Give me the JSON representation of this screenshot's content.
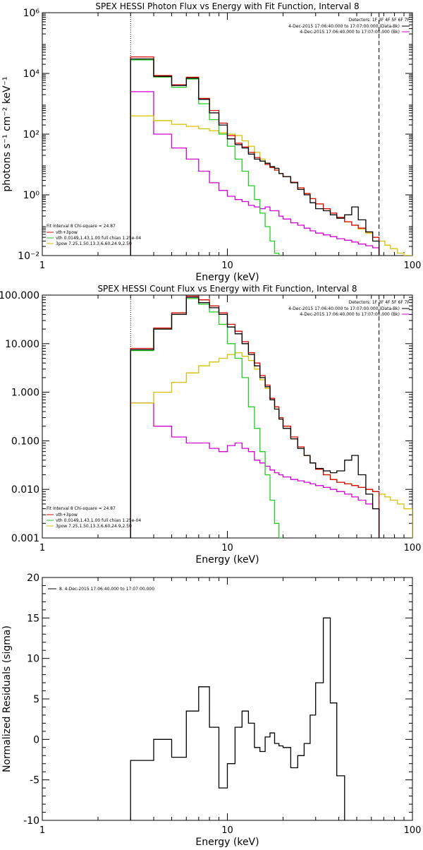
{
  "colors": {
    "total": "#000000",
    "vth_plus_3pow": "#d40000",
    "vth": "#22cc22",
    "pow": "#d6c000",
    "background": "#d000d0"
  },
  "chart_data": [
    {
      "type": "line",
      "title": "SPEX HESSI Photon Flux vs Energy with Fit Function, Interval 8",
      "xlabel": "Energy (keV)",
      "ylabel": "photons s⁻¹ cm⁻² keV⁻¹",
      "x_scale": "log",
      "y_scale": "log",
      "xlim": [
        1,
        100
      ],
      "ylim": [
        0.01,
        1000000
      ],
      "xticks": [
        "1",
        "10",
        "100"
      ],
      "yticks": [
        "10⁻²",
        "10⁰",
        "10²",
        "10⁴",
        "10⁶"
      ],
      "detectors_label": "Detectors: 1F 3F 4F 5F 6F 7F",
      "legend_right": [
        {
          "text": "4-Dec-2015 17:06:40.000 to 17:07:00.000 (Data-Bk)",
          "color": "#000000"
        },
        {
          "text": "4-Dec-2015 17:06:40.000 to 17:07:00.000 (Bk)",
          "color": "#d000d0"
        }
      ],
      "legend_left_title": "Fit Interval 8   Chi-square = 24.87",
      "legend_left": [
        {
          "text": "vth+3pow",
          "color": "#d40000"
        },
        {
          "text": "vth 0.0149,1.43,1.00  full chian 1.25e-04",
          "color": "#22cc22"
        },
        {
          "text": "3pow 7.25,1.50,13.3,6.60,24.9,2.50",
          "color": "#d6c000"
        }
      ],
      "fit_range_keV": [
        3.0,
        66
      ],
      "energy_edges_keV": [
        3,
        3.5,
        4,
        4.5,
        5,
        5.5,
        6,
        6.5,
        7,
        7.5,
        8,
        8.5,
        9,
        9.5,
        10,
        10.5,
        11,
        12,
        13,
        14,
        15,
        16,
        17,
        18,
        19,
        20,
        22,
        24,
        26,
        28,
        30,
        33,
        36,
        39,
        43,
        47,
        51,
        56,
        61,
        66,
        71,
        76,
        83,
        90,
        100
      ],
      "series": [
        {
          "name": "Data-Bk",
          "color": "#000000",
          "values": [
            30000,
            30000,
            8000,
            8000,
            4000,
            4000,
            7000,
            7000,
            1400,
            1400,
            500,
            500,
            200,
            200,
            70,
            70,
            45,
            35,
            22,
            15,
            13,
            11,
            8.5,
            7.5,
            5,
            4,
            2.5,
            1.5,
            1.0,
            0.55,
            0.35,
            0.3,
            0.22,
            0.17,
            0.22,
            0.4,
            0.15,
            0.06,
            0.03,
            null,
            null,
            null,
            null,
            null
          ]
        },
        {
          "name": "vth+3pow",
          "color": "#d40000",
          "values": [
            35000,
            35000,
            8500,
            8500,
            4200,
            4200,
            7500,
            7500,
            1500,
            1500,
            600,
            600,
            230,
            230,
            90,
            90,
            50,
            38,
            25,
            17,
            13,
            10,
            8,
            6.5,
            5,
            4,
            2.6,
            1.7,
            1.1,
            0.75,
            0.5,
            0.35,
            0.25,
            0.18,
            0.13,
            0.1,
            0.08,
            0.06,
            0.04,
            null,
            null,
            null,
            null,
            null
          ]
        },
        {
          "name": "vth",
          "color": "#22cc22",
          "values": [
            28000,
            28000,
            7600,
            7600,
            3500,
            3500,
            6500,
            6500,
            1000,
            1000,
            300,
            300,
            100,
            100,
            40,
            40,
            15,
            6,
            2,
            0.7,
            0.25,
            0.09,
            0.03,
            0.012,
            null,
            null,
            null,
            null,
            null,
            null,
            null,
            null,
            null,
            null,
            null,
            null,
            null,
            null,
            null,
            null,
            null,
            null,
            null,
            null
          ]
        },
        {
          "name": "3pow",
          "color": "#d6c000",
          "values": [
            400,
            400,
            280,
            280,
            210,
            210,
            180,
            180,
            150,
            150,
            130,
            130,
            110,
            110,
            100,
            100,
            90,
            60,
            40,
            25,
            15,
            11,
            8,
            6.5,
            5,
            4,
            2.6,
            1.7,
            1.1,
            0.75,
            0.5,
            0.35,
            0.25,
            0.18,
            0.13,
            0.1,
            0.075,
            0.055,
            0.04,
            0.03,
            0.022,
            0.017,
            0.012,
            0.009
          ]
        },
        {
          "name": "Bk",
          "color": "#d000d0",
          "values": [
            2500,
            2500,
            100,
            100,
            35,
            35,
            15,
            15,
            6,
            6,
            2.5,
            2.5,
            1.4,
            1.4,
            0.9,
            0.9,
            0.7,
            0.6,
            0.45,
            0.4,
            0.35,
            0.4,
            0.3,
            0.3,
            0.2,
            0.16,
            0.12,
            0.1,
            0.08,
            0.065,
            0.055,
            0.048,
            0.042,
            0.036,
            0.032,
            0.028,
            0.024,
            0.021,
            0.018,
            null,
            null,
            null,
            null,
            null
          ]
        }
      ]
    },
    {
      "type": "line",
      "title": "SPEX HESSI Count Flux vs Energy with Fit Function, Interval 8",
      "xlabel": "Energy (keV)",
      "ylabel": "",
      "x_scale": "log",
      "y_scale": "log",
      "xlim": [
        1,
        100
      ],
      "ylim": [
        0.001,
        100
      ],
      "xticks": [
        "1",
        "10",
        "100"
      ],
      "yticks": [
        "0.001",
        "0.010",
        "0.100",
        "1.000",
        "10.000",
        "100.000"
      ],
      "detectors_label": "Detectors: 1F 3F 4F 5F 6F 7F",
      "legend_right": [
        {
          "text": "4-Dec-2015 17:06:40.000 to 17:07:00.000 (Data-Bk)",
          "color": "#000000"
        },
        {
          "text": "4-Dec-2015 17:06:40.000 to 17:07:00.000 (Bk)",
          "color": "#d000d0"
        }
      ],
      "legend_left_title": "Fit Interval 8   Chi-square = 24.87",
      "legend_left": [
        {
          "text": "vth+3pow",
          "color": "#d40000"
        },
        {
          "text": "vth 0.0149,1.43,1.00  full chian 1.25e-04",
          "color": "#22cc22"
        },
        {
          "text": "3pow 7.25,1.50,13.3,6.60,24.9,2.50",
          "color": "#d6c000"
        }
      ],
      "fit_range_keV": [
        3.0,
        66
      ],
      "energy_edges_keV": [
        3,
        3.5,
        4,
        4.5,
        5,
        5.5,
        6,
        6.5,
        7,
        7.5,
        8,
        8.5,
        9,
        9.5,
        10,
        10.5,
        11,
        12,
        13,
        14,
        15,
        16,
        17,
        18,
        19,
        20,
        22,
        24,
        26,
        28,
        30,
        33,
        36,
        39,
        43,
        47,
        51,
        56,
        61,
        66,
        71,
        76,
        83,
        90,
        100
      ],
      "series": [
        {
          "name": "Data-Bk",
          "color": "#000000",
          "values": [
            7.5,
            7.5,
            20,
            20,
            40,
            40,
            90,
            90,
            70,
            70,
            55,
            55,
            40,
            40,
            22,
            22,
            16,
            10,
            6,
            3.5,
            2.0,
            1.3,
            0.7,
            0.45,
            0.28,
            0.18,
            0.11,
            0.07,
            0.05,
            0.035,
            0.027,
            0.024,
            0.022,
            0.024,
            0.04,
            0.05,
            0.02,
            0.008,
            0.004,
            null,
            null,
            null,
            null,
            null
          ]
        },
        {
          "name": "vth+3pow",
          "color": "#d40000",
          "values": [
            8.0,
            8.0,
            21,
            21,
            43,
            43,
            95,
            95,
            80,
            80,
            60,
            60,
            43,
            43,
            25,
            25,
            18,
            11,
            6.5,
            4.0,
            2.2,
            1.4,
            0.75,
            0.5,
            0.3,
            0.2,
            0.12,
            0.075,
            0.05,
            0.035,
            0.026,
            0.02,
            0.016,
            0.014,
            0.013,
            0.012,
            0.011,
            0.01,
            0.009,
            null,
            null,
            null,
            null,
            null
          ]
        },
        {
          "name": "vth",
          "color": "#22cc22",
          "values": [
            7.2,
            7.2,
            20,
            20,
            40,
            40,
            85,
            85,
            65,
            65,
            45,
            45,
            25,
            25,
            10,
            10,
            5,
            2.0,
            0.5,
            0.18,
            0.06,
            0.02,
            0.006,
            0.002,
            0.001,
            null,
            null,
            null,
            null,
            null,
            null,
            null,
            null,
            null,
            null,
            null,
            null,
            null,
            null,
            null,
            null,
            null,
            null,
            null
          ]
        },
        {
          "name": "3pow",
          "color": "#d6c000",
          "values": [
            0.6,
            0.6,
            1.0,
            1.0,
            1.6,
            1.6,
            2.5,
            2.5,
            3.5,
            3.5,
            4.2,
            4.2,
            5.0,
            5.0,
            6.0,
            6.0,
            6.5,
            5.5,
            4.5,
            3.0,
            1.8,
            1.2,
            0.7,
            0.45,
            0.28,
            0.18,
            0.11,
            0.07,
            0.05,
            0.035,
            0.026,
            0.02,
            0.016,
            0.014,
            0.013,
            0.012,
            0.011,
            0.01,
            0.009,
            0.008,
            0.007,
            0.006,
            0.005,
            0.004
          ]
        },
        {
          "name": "Bk",
          "color": "#d000d0",
          "values": [
            0.6,
            0.6,
            0.2,
            0.2,
            0.12,
            0.12,
            0.09,
            0.09,
            0.09,
            0.09,
            0.07,
            0.07,
            0.06,
            0.06,
            0.08,
            0.08,
            0.09,
            0.07,
            0.06,
            0.04,
            0.035,
            0.03,
            0.025,
            0.022,
            0.02,
            0.018,
            0.016,
            0.015,
            0.014,
            0.013,
            0.012,
            0.011,
            0.01,
            0.009,
            0.008,
            0.007,
            0.006,
            0.005,
            0.004,
            null,
            null,
            null,
            null,
            null
          ]
        }
      ]
    },
    {
      "type": "line",
      "title": "",
      "xlabel": "Energy (keV)",
      "ylabel": "Normalized Residuals (sigma)",
      "x_scale": "log",
      "y_scale": "linear",
      "xlim": [
        1,
        100
      ],
      "ylim": [
        -10,
        20
      ],
      "xticks": [
        "1",
        "10",
        "100"
      ],
      "yticks": [
        "-10",
        "-5",
        "0",
        "5",
        "10",
        "15",
        "20"
      ],
      "legend": "8.  4-Dec-2015 17:06:40.000 to 17:07:00.000",
      "energy_edges_keV": [
        3,
        3.5,
        4,
        4.5,
        5,
        5.5,
        6,
        6.5,
        7,
        7.5,
        8,
        8.5,
        9,
        9.5,
        10,
        10.5,
        11,
        12,
        13,
        14,
        15,
        16,
        17,
        18,
        19,
        20,
        22,
        24,
        26,
        28,
        30,
        33,
        36,
        39,
        43,
        47,
        51,
        56,
        61,
        66
      ],
      "series": [
        {
          "name": "residuals",
          "color": "#000000",
          "values": [
            -2.6,
            -2.6,
            0.0,
            0.0,
            -2.2,
            -2.2,
            3.5,
            3.5,
            6.5,
            6.5,
            1.5,
            1.5,
            -6.0,
            -6.0,
            -3.0,
            -3.0,
            1.5,
            3.5,
            2.0,
            -1.0,
            -1.5,
            0.3,
            0.8,
            -0.5,
            -0.8,
            -1.0,
            -3.5,
            -2.0,
            -0.5,
            3.0,
            7.0,
            15.0,
            4.5,
            -4.5,
            null,
            null,
            null,
            null,
            null
          ]
        }
      ]
    }
  ]
}
